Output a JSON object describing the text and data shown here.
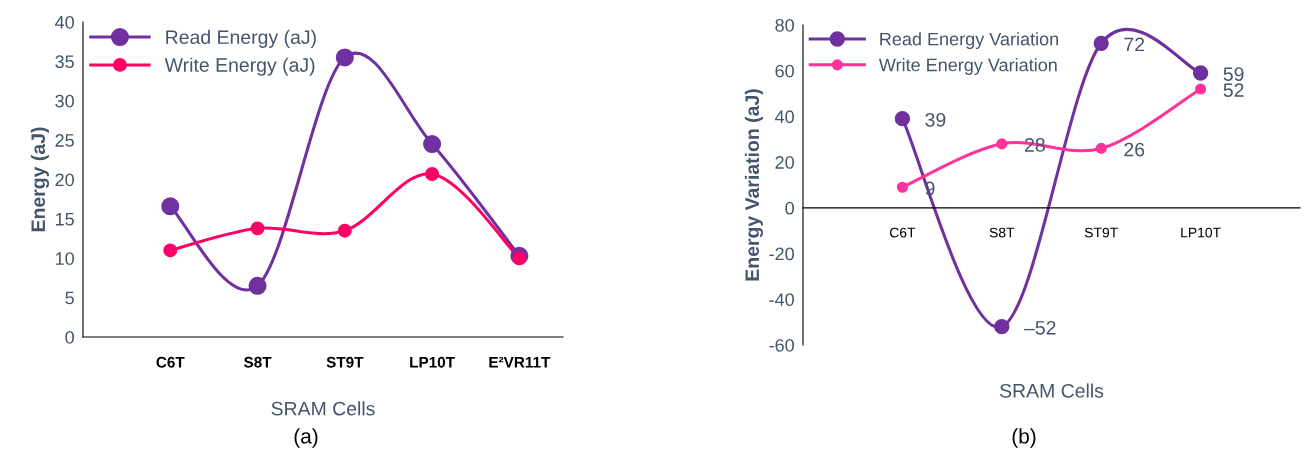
{
  "chart_data": [
    {
      "type": "line",
      "xlabel": "SRAM Cells",
      "ylabel": "Energy (aJ)",
      "categories": [
        "C6T",
        "S8T",
        "ST9T",
        "LP10T",
        "E²VR11T"
      ],
      "ylim": [
        0,
        40
      ],
      "yticks": [
        0,
        5,
        10,
        15,
        20,
        25,
        30,
        35,
        40
      ],
      "grid": false,
      "legend": "top left",
      "marker": "circle",
      "line_style": "solid",
      "series": [
        {
          "name": "Read Energy (aJ)",
          "color": "#7030a0",
          "values": [
            16.6,
            6.5,
            35.5,
            24.5,
            10.3
          ]
        },
        {
          "name": "Write Energy (aJ)",
          "color": "#ff0066",
          "values": [
            11,
            13.8,
            13.5,
            20.7,
            10
          ]
        }
      ],
      "annotations": [
        "(a)"
      ]
    },
    {
      "type": "line",
      "xlabel": "SRAM Cells",
      "ylabel": "Energy Variation (aJ)",
      "categories": [
        "C6T",
        "S8T",
        "ST9T",
        "LP10T"
      ],
      "ylim": [
        -60,
        80
      ],
      "yticks": [
        -60,
        -40,
        -20,
        0,
        20,
        40,
        60,
        80
      ],
      "grid": false,
      "legend": "top left",
      "marker": "circle",
      "line_style": "solid",
      "series": [
        {
          "name": "Read Energy Variation",
          "color": "#7030a0",
          "values": [
            39,
            -52,
            72,
            59
          ],
          "value_labels": [
            "39",
            "–52",
            "72",
            "59"
          ]
        },
        {
          "name": "Write Energy Variation",
          "color": "#ff3399",
          "values": [
            9,
            28,
            26,
            52
          ],
          "value_labels": [
            "9",
            "28",
            "26",
            "52"
          ]
        }
      ],
      "annotations": [
        "(b)"
      ]
    }
  ]
}
